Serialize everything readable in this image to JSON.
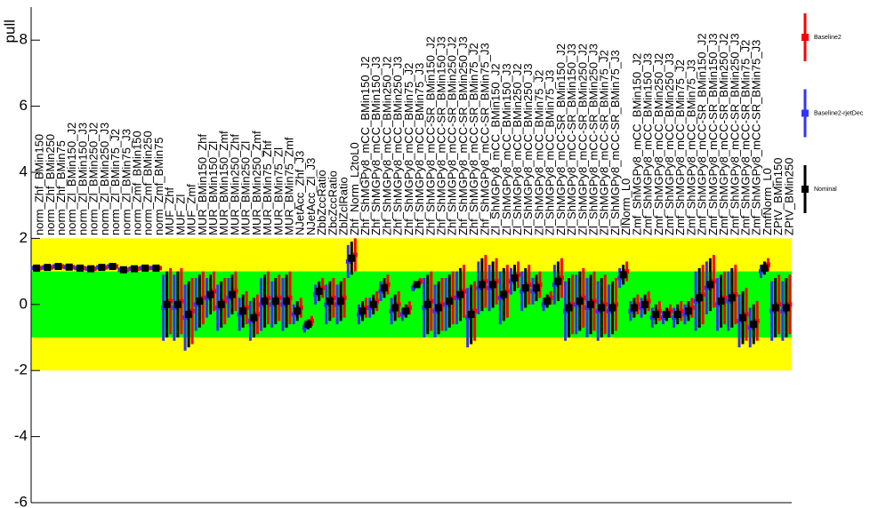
{
  "chart_data": {
    "type": "pull",
    "ylabel": "pull",
    "ylim": [
      -6,
      9
    ],
    "yticks": [
      -6,
      -4,
      -2,
      0,
      2,
      4,
      6,
      8
    ],
    "bands": [
      {
        "value": 2,
        "color": "#ffff00"
      },
      {
        "value": 1,
        "color": "#00ff00"
      }
    ],
    "categories": [
      "norm_Zhf_BMin150",
      "norm_Zhf_BMin250",
      "norm_Zhf_BMin75",
      "norm_Zl_BMin150_J2",
      "norm_Zl_BMin150_J3",
      "norm_Zl_BMin250_J2",
      "norm_Zl_BMin250_J3",
      "norm_Zl_BMin75_J2",
      "norm_Zl_BMin75_J3",
      "norm_Zmf_BMin150",
      "norm_Zmf_BMin250",
      "norm_Zmf_BMin75",
      "MUF_Zhf",
      "MUF_Zl",
      "MUF_Zmf",
      "MUR_BMin150_Zhf",
      "MUR_BMin150_Zl",
      "MUR_BMin150_Zmf",
      "MUR_BMin250_Zhf",
      "MUR_BMin250_Zl",
      "MUR_BMin250_Zmf",
      "MUR_BMin75_Zhf",
      "MUR_BMin75_Zl",
      "MUR_BMin75_Zmf",
      "NJetAcc_Zhf_J3",
      "NJetAcc_Zl_J3",
      "ZbbZccRatio",
      "ZbcZccRatio",
      "ZblZclRatio",
      "Zhf_Norm_L2toL0",
      "Zhf_ShMGPy8_mCC_BMin150_J2",
      "Zhf_ShMGPy8_mCC_BMin150_J3",
      "Zhf_ShMGPy8_mCC_BMin250_J2",
      "Zhf_ShMGPy8_mCC_BMin250_J3",
      "Zhf_ShMGPy8_mCC_BMin75_J2",
      "Zhf_ShMGPy8_mCC_BMin75_J3",
      "Zhf_ShMGPy8_mCC-SR_BMin150_J2",
      "Zhf_ShMGPy8_mCC-SR_BMin150_J3",
      "Zhf_ShMGPy8_mCC-SR_BMin250_J2",
      "Zhf_ShMGPy8_mCC-SR_BMin250_J3",
      "Zhf_ShMGPy8_mCC-SR_BMin75_J2",
      "Zhf_ShMGPy8_mCC-SR_BMin75_J3",
      "Zl_ShMGPy8_mCC_BMin150_J2",
      "Zl_ShMGPy8_mCC_BMin150_J3",
      "Zl_ShMGPy8_mCC_BMin250_J2",
      "Zl_ShMGPy8_mCC_BMin250_J3",
      "Zl_ShMGPy8_mCC_BMin75_J2",
      "Zl_ShMGPy8_mCC_BMin75_J3",
      "Zl_ShMGPy8_mCC-SR_BMin150_J2",
      "Zl_ShMGPy8_mCC-SR_BMin150_J3",
      "Zl_ShMGPy8_mCC-SR_BMin250_J2",
      "Zl_ShMGPy8_mCC-SR_BMin250_J3",
      "Zl_ShMGPy8_mCC-SR_BMin75_J2",
      "Zl_ShMGPy8_mCC-SR_BMin75_J3",
      "ZlNorm_L0",
      "Zmf_ShMGPy8_mCC_BMin150_J2",
      "Zmf_ShMGPy8_mCC_BMin150_J3",
      "Zmf_ShMGPy8_mCC_BMin250_J2",
      "Zmf_ShMGPy8_mCC_BMin250_J3",
      "Zmf_ShMGPy8_mCC_BMin75_J2",
      "Zmf_ShMGPy8_mCC_BMin75_J3",
      "Zmf_ShMGPy8_mCC-SR_BMin150_J2",
      "Zmf_ShMGPy8_mCC-SR_BMin150_J3",
      "Zmf_ShMGPy8_mCC-SR_BMin250_J2",
      "Zmf_ShMGPy8_mCC-SR_BMin250_J3",
      "Zmf_ShMGPy8_mCC-SR_BMin75_J2",
      "Zmf_ShMGPy8_mCC-SR_BMin75_J3",
      "ZmfNorm_L0",
      "ZPtV_BMin150",
      "ZPtV_BMin250"
    ],
    "series": [
      {
        "name": "Baseline2",
        "color": "#ff0000",
        "values": [
          1.1,
          1.12,
          1.15,
          1.13,
          1.1,
          1.08,
          1.12,
          1.15,
          1.05,
          1.08,
          1.1,
          1.1,
          0.1,
          0.1,
          -0.2,
          0.2,
          0.4,
          0.1,
          0.4,
          -0.1,
          -0.3,
          0.2,
          0.2,
          0.2,
          -0.1,
          -0.5,
          0.5,
          0.2,
          0.2,
          1.5,
          -0.1,
          0.1,
          0.6,
          0,
          -0.1,
          0.7,
          0.1,
          0,
          0.2,
          0.4,
          -0.2,
          0.7,
          0.7,
          0.4,
          0.9,
          0.6,
          0.6,
          0.2,
          0.8,
          0,
          0.2,
          0.1,
          0,
          0,
          1.0,
          0,
          0.1,
          -0.2,
          -0.2,
          -0.2,
          -0.1,
          0.3,
          0.7,
          0.2,
          0.3,
          -0.3,
          -0.5,
          1.2,
          0,
          0
        ],
        "errors": [
          0.05,
          0.05,
          0.05,
          0.05,
          0.05,
          0.05,
          0.05,
          0.05,
          0.05,
          0.05,
          0.05,
          0.05,
          1,
          1,
          1,
          0.8,
          0.6,
          0.7,
          0.6,
          0.5,
          0.6,
          0.8,
          0.7,
          0.8,
          0.3,
          0.15,
          0.3,
          0.6,
          0.6,
          0.5,
          0.3,
          0.3,
          0.3,
          0.4,
          0.2,
          0.1,
          0.9,
          0.8,
          0.8,
          0.8,
          0.9,
          0.8,
          0.7,
          0.8,
          0.4,
          0.6,
          0.4,
          0.2,
          0.6,
          0.9,
          0.9,
          0.9,
          0.9,
          0.8,
          0.3,
          0.3,
          0.3,
          0.3,
          0.2,
          0.3,
          0.3,
          0.9,
          0.8,
          0.8,
          0.9,
          0.8,
          0.6,
          0.2,
          0.9,
          0.9
        ]
      },
      {
        "name": "Baseline2-rjetDec",
        "color": "#3333ff",
        "values": [
          1.1,
          1.12,
          1.15,
          1.13,
          1.1,
          1.08,
          1.12,
          1.15,
          1.05,
          1.08,
          1.1,
          1.1,
          -0.1,
          -0.1,
          -0.4,
          0,
          0.2,
          -0.1,
          0.2,
          -0.3,
          -0.5,
          0,
          0,
          0,
          -0.3,
          -0.7,
          0.3,
          0,
          0,
          1.3,
          -0.3,
          -0.1,
          0.4,
          -0.2,
          -0.3,
          0.5,
          -0.1,
          -0.2,
          0,
          0.2,
          -0.4,
          0.5,
          0.5,
          0.2,
          0.7,
          0.4,
          0.4,
          0,
          0.6,
          -0.2,
          0,
          -0.1,
          -0.2,
          -0.2,
          0.8,
          -0.2,
          -0.1,
          -0.4,
          -0.4,
          -0.4,
          -0.3,
          0.1,
          0.5,
          0,
          0.1,
          -0.5,
          -0.7,
          1.0,
          -0.2,
          -0.2
        ],
        "errors": [
          0.05,
          0.05,
          0.05,
          0.05,
          0.05,
          0.05,
          0.05,
          0.05,
          0.05,
          0.05,
          0.05,
          0.05,
          1,
          1,
          1,
          0.8,
          0.6,
          0.7,
          0.6,
          0.5,
          0.6,
          0.8,
          0.7,
          0.8,
          0.3,
          0.15,
          0.3,
          0.6,
          0.6,
          0.5,
          0.3,
          0.3,
          0.3,
          0.4,
          0.2,
          0.1,
          0.9,
          0.8,
          0.8,
          0.8,
          0.9,
          0.8,
          0.7,
          0.8,
          0.4,
          0.6,
          0.4,
          0.2,
          0.6,
          0.9,
          0.9,
          0.9,
          0.9,
          0.8,
          0.3,
          0.3,
          0.3,
          0.3,
          0.2,
          0.3,
          0.3,
          0.9,
          0.8,
          0.8,
          0.9,
          0.8,
          0.6,
          0.2,
          0.9,
          0.9
        ]
      },
      {
        "name": "Nominal",
        "color": "#000000",
        "values": [
          1.1,
          1.12,
          1.15,
          1.13,
          1.1,
          1.08,
          1.12,
          1.15,
          1.05,
          1.08,
          1.1,
          1.1,
          0,
          0,
          -0.3,
          0.1,
          0.3,
          0,
          0.3,
          -0.2,
          -0.4,
          0.1,
          0.1,
          0.1,
          -0.2,
          -0.6,
          0.4,
          0.1,
          0.1,
          1.4,
          -0.2,
          0,
          0.5,
          -0.1,
          -0.2,
          0.6,
          0,
          -0.1,
          0.1,
          0.3,
          -0.3,
          0.6,
          0.6,
          0.3,
          0.8,
          0.5,
          0.5,
          0.1,
          0.7,
          -0.1,
          0.1,
          0,
          -0.1,
          -0.1,
          0.9,
          -0.1,
          0,
          -0.3,
          -0.3,
          -0.3,
          -0.2,
          0.2,
          0.6,
          0.1,
          0.2,
          -0.4,
          -0.6,
          1.1,
          -0.1,
          -0.1
        ],
        "errors": [
          0.05,
          0.05,
          0.05,
          0.05,
          0.05,
          0.05,
          0.05,
          0.05,
          0.05,
          0.05,
          0.05,
          0.05,
          1,
          1,
          1,
          0.8,
          0.6,
          0.7,
          0.6,
          0.5,
          0.6,
          0.8,
          0.7,
          0.8,
          0.3,
          0.15,
          0.3,
          0.6,
          0.6,
          0.5,
          0.3,
          0.3,
          0.3,
          0.4,
          0.2,
          0.1,
          0.9,
          0.8,
          0.8,
          0.8,
          0.9,
          0.8,
          0.7,
          0.8,
          0.4,
          0.6,
          0.4,
          0.2,
          0.6,
          0.9,
          0.9,
          0.9,
          0.9,
          0.8,
          0.3,
          0.3,
          0.3,
          0.3,
          0.2,
          0.3,
          0.3,
          0.9,
          0.8,
          0.8,
          0.9,
          0.8,
          0.6,
          0.2,
          0.9,
          0.9
        ]
      }
    ]
  }
}
